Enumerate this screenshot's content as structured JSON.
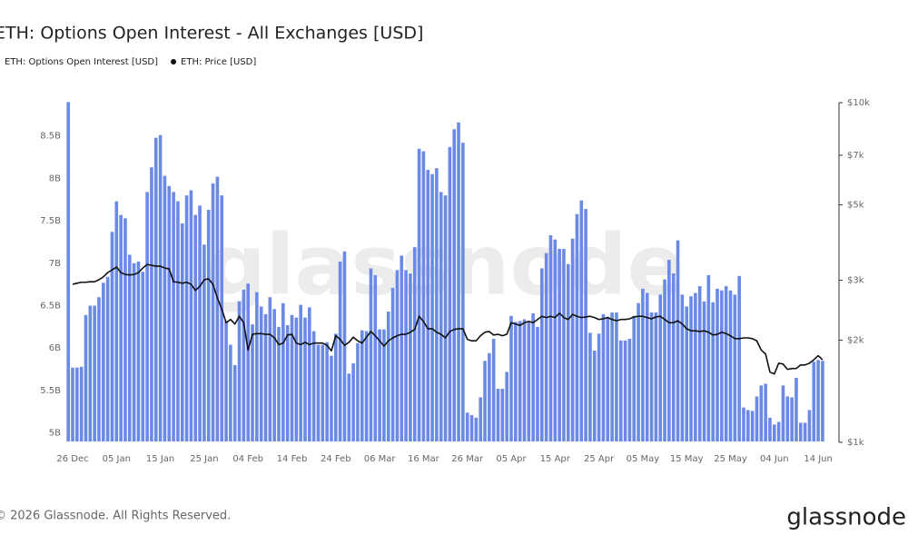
{
  "chart_data": {
    "type": "bar",
    "title": "ETH: Options Open Interest - All Exchanges [USD]",
    "watermark": "glassnode",
    "footer": "© 2026 Glassnode. All Rights Reserved.",
    "logo": "glassnode",
    "categories": [
      null,
      "26 Dec",
      null,
      null,
      null,
      null,
      null,
      null,
      null,
      null,
      null,
      "05 Jan",
      null,
      null,
      null,
      null,
      null,
      null,
      null,
      null,
      null,
      "15 Jan",
      null,
      null,
      null,
      null,
      null,
      null,
      null,
      null,
      null,
      "25 Jan",
      null,
      null,
      null,
      null,
      null,
      null,
      null,
      null,
      null,
      "04 Feb",
      null,
      null,
      null,
      null,
      null,
      null,
      null,
      null,
      null,
      "14 Feb",
      null,
      null,
      null,
      null,
      null,
      null,
      null,
      null,
      null,
      "24 Feb",
      null,
      null,
      null,
      null,
      null,
      null,
      null,
      null,
      null,
      "06 Mar",
      null,
      null,
      null,
      null,
      null,
      null,
      null,
      null,
      null,
      "16 Mar",
      null,
      null,
      null,
      null,
      null,
      null,
      null,
      null,
      null,
      "26 Mar",
      null,
      null,
      null,
      null,
      null,
      null,
      null,
      null,
      null,
      "05 Apr",
      null,
      null,
      null,
      null,
      null,
      null,
      null,
      null,
      null,
      "15 Apr",
      null,
      null,
      null,
      null,
      null,
      null,
      null,
      null,
      null,
      "25 Apr",
      null,
      null,
      null,
      null,
      null,
      null,
      null,
      null,
      null,
      "05 May",
      null,
      null,
      null,
      null,
      null,
      null,
      null,
      null,
      null,
      "15 May",
      null,
      null,
      null,
      null,
      null,
      null,
      null,
      null,
      null,
      "25 May",
      null,
      null,
      null,
      null,
      null,
      null,
      null,
      null,
      null,
      "04 Jun",
      null,
      null,
      null,
      null,
      null,
      null,
      null,
      null,
      null,
      "14 Jun",
      null
    ],
    "series": [
      {
        "name": "ETH: Options Open Interest [USD]",
        "type": "bar",
        "color": "#6b8ae6",
        "values": [
          8.9,
          5.77,
          5.77,
          5.78,
          6.39,
          6.5,
          6.5,
          6.6,
          6.77,
          6.84,
          7.37,
          7.73,
          7.57,
          7.53,
          7.1,
          7.0,
          7.02,
          6.9,
          7.84,
          8.13,
          8.48,
          8.51,
          8.03,
          7.91,
          7.84,
          7.73,
          7.47,
          7.8,
          7.86,
          7.57,
          7.68,
          7.22,
          7.63,
          7.94,
          8.02,
          7.8,
          6.32,
          6.04,
          5.8,
          6.55,
          6.69,
          6.76,
          6.28,
          6.66,
          6.49,
          6.4,
          6.6,
          6.46,
          6.25,
          6.53,
          6.27,
          6.39,
          6.36,
          6.51,
          6.36,
          6.48,
          6.2,
          6.04,
          6.04,
          6.07,
          5.91,
          6.17,
          7.02,
          7.14,
          5.7,
          5.82,
          6.06,
          6.21,
          6.2,
          6.94,
          6.86,
          6.22,
          6.22,
          6.43,
          6.71,
          6.92,
          7.09,
          6.92,
          6.88,
          7.19,
          8.35,
          8.32,
          8.1,
          8.05,
          8.12,
          7.84,
          7.8,
          8.37,
          8.58,
          8.66,
          8.42,
          5.24,
          5.21,
          5.18,
          5.42,
          5.85,
          5.94,
          6.11,
          5.52,
          5.52,
          5.72,
          6.38,
          6.31,
          6.32,
          6.34,
          6.31,
          6.41,
          6.25,
          6.94,
          7.12,
          7.33,
          7.28,
          7.17,
          7.17,
          6.99,
          7.29,
          7.58,
          7.74,
          7.64,
          6.18,
          5.97,
          6.17,
          6.4,
          6.37,
          6.42,
          6.42,
          6.09,
          6.09,
          6.11,
          6.38,
          6.53,
          6.7,
          6.65,
          6.42,
          6.42,
          6.63,
          6.81,
          7.04,
          6.88,
          7.27,
          6.63,
          6.49,
          6.61,
          6.65,
          6.73,
          6.55,
          6.86,
          6.54,
          6.7,
          6.68,
          6.73,
          6.68,
          6.63,
          6.85,
          5.3,
          5.27,
          5.26,
          5.43,
          5.56,
          5.58,
          5.18,
          5.1,
          5.13,
          5.56,
          5.43,
          5.42,
          5.65,
          5.12,
          5.12,
          5.27,
          5.84,
          5.86,
          5.85
        ]
      },
      {
        "name": "ETH: Price [USD]",
        "type": "line",
        "color": "#111111",
        "axis": "y2",
        "values": [
          null,
          2920,
          2940,
          2960,
          2960,
          2970,
          2970,
          3010,
          3070,
          3160,
          3220,
          3280,
          3160,
          3120,
          3110,
          3120,
          3160,
          3260,
          3340,
          3320,
          3300,
          3300,
          3260,
          3240,
          2970,
          2960,
          2940,
          2960,
          2920,
          2800,
          2880,
          3010,
          3030,
          2920,
          2660,
          2470,
          2250,
          2300,
          2230,
          2350,
          2250,
          1870,
          2080,
          2090,
          2090,
          2080,
          2080,
          2030,
          1940,
          1960,
          2070,
          2080,
          1960,
          1940,
          1970,
          1940,
          1960,
          1960,
          1960,
          1930,
          1860,
          2060,
          2010,
          1930,
          1970,
          2040,
          1990,
          1960,
          2040,
          2120,
          2060,
          1990,
          1920,
          1990,
          2030,
          2060,
          2080,
          2080,
          2110,
          2150,
          2350,
          2270,
          2160,
          2160,
          2110,
          2080,
          2030,
          2120,
          2150,
          2160,
          2160,
          2010,
          1990,
          1990,
          2060,
          2110,
          2120,
          2070,
          2080,
          2060,
          2080,
          2250,
          2230,
          2210,
          2250,
          2270,
          2250,
          2300,
          2350,
          2330,
          2350,
          2330,
          2400,
          2330,
          2300,
          2380,
          2350,
          2330,
          2340,
          2350,
          2330,
          2300,
          2310,
          2330,
          2300,
          2280,
          2300,
          2300,
          2310,
          2340,
          2350,
          2350,
          2330,
          2310,
          2340,
          2350,
          2300,
          2250,
          2250,
          2280,
          2230,
          2160,
          2130,
          2130,
          2120,
          2130,
          2110,
          2070,
          2080,
          2110,
          2090,
          2060,
          2020,
          2020,
          2030,
          2030,
          2020,
          1990,
          1870,
          1820,
          1610,
          1590,
          1710,
          1700,
          1640,
          1650,
          1650,
          1690,
          1690,
          1710,
          1750,
          1800,
          1750
        ]
      }
    ],
    "ylim": [
      4.9,
      9.0
    ],
    "yticks": [
      {
        "value": 5,
        "label": "5B"
      },
      {
        "value": 5.5,
        "label": "5.5B"
      },
      {
        "value": 6,
        "label": "6B"
      },
      {
        "value": 6.5,
        "label": "6.5B"
      },
      {
        "value": 7,
        "label": "7B"
      },
      {
        "value": 7.5,
        "label": "7.5B"
      },
      {
        "value": 8,
        "label": "8B"
      },
      {
        "value": 8.5,
        "label": "8.5B"
      }
    ],
    "y2lim": [
      1000,
      10000
    ],
    "y2scale": "log",
    "y2ticks": [
      {
        "value": 1000,
        "label": "$1k"
      },
      {
        "value": 2000,
        "label": "$2k"
      },
      {
        "value": 3000,
        "label": "$3k"
      },
      {
        "value": 5000,
        "label": "$5k"
      },
      {
        "value": 7000,
        "label": "$7k"
      },
      {
        "value": 10000,
        "label": "$10k"
      }
    ],
    "grid": false,
    "legend": "top-left"
  }
}
